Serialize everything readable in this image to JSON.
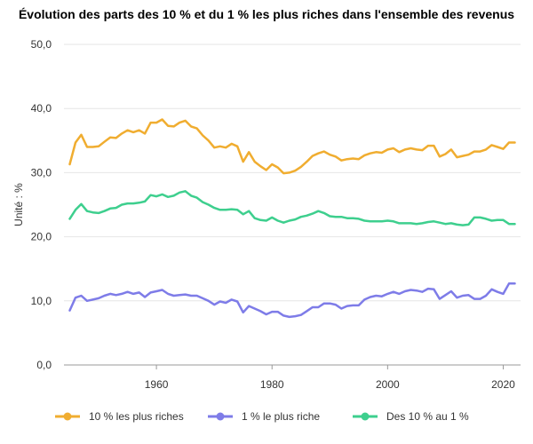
{
  "chart_data": {
    "type": "line",
    "title": "Évolution des parts des 10 % et du 1 % les plus riches dans l'ensemble des revenus",
    "ylabel": "Unité : %",
    "xlabel": "",
    "xlim": [
      1944,
      2023
    ],
    "ylim": [
      0,
      50
    ],
    "x_ticks": [
      1960,
      1980,
      2000,
      2020
    ],
    "y_ticks": [
      0,
      10,
      20,
      30,
      40,
      50
    ],
    "y_tick_labels": [
      "0,0",
      "10,0",
      "20,0",
      "30,0",
      "40,0",
      "50,0"
    ],
    "legend_position": "bottom",
    "grid": "horizontal",
    "x": [
      1945,
      1946,
      1947,
      1948,
      1949,
      1950,
      1951,
      1952,
      1953,
      1954,
      1955,
      1956,
      1957,
      1958,
      1959,
      1960,
      1961,
      1962,
      1963,
      1964,
      1965,
      1966,
      1967,
      1968,
      1969,
      1970,
      1971,
      1972,
      1973,
      1974,
      1975,
      1976,
      1977,
      1978,
      1979,
      1980,
      1981,
      1982,
      1983,
      1984,
      1985,
      1986,
      1987,
      1988,
      1989,
      1990,
      1991,
      1992,
      1993,
      1994,
      1995,
      1996,
      1997,
      1998,
      1999,
      2000,
      2001,
      2002,
      2003,
      2004,
      2005,
      2006,
      2007,
      2008,
      2009,
      2010,
      2011,
      2012,
      2013,
      2014,
      2015,
      2016,
      2017,
      2018,
      2019,
      2020,
      2021,
      2022
    ],
    "series": [
      {
        "name": "10 % les plus riches",
        "color": "#f0ad30",
        "values": [
          31.3,
          34.7,
          35.9,
          34.0,
          34.0,
          34.1,
          34.8,
          35.5,
          35.4,
          36.1,
          36.6,
          36.3,
          36.6,
          36.1,
          37.8,
          37.8,
          38.3,
          37.3,
          37.2,
          37.8,
          38.1,
          37.2,
          36.9,
          35.8,
          35.0,
          33.9,
          34.1,
          33.9,
          34.5,
          34.1,
          31.7,
          33.2,
          31.7,
          31.0,
          30.4,
          31.3,
          30.8,
          29.9,
          30.0,
          30.3,
          30.9,
          31.7,
          32.6,
          33.0,
          33.3,
          32.8,
          32.5,
          31.9,
          32.1,
          32.2,
          32.1,
          32.7,
          33.0,
          33.2,
          33.1,
          33.6,
          33.8,
          33.2,
          33.6,
          33.8,
          33.6,
          33.5,
          34.2,
          34.2,
          32.5,
          32.9,
          33.6,
          32.4,
          32.6,
          32.8,
          33.3,
          33.3,
          33.6,
          34.3,
          34.0,
          33.7,
          34.7,
          34.7
        ]
      },
      {
        "name": "1 % le plus riche",
        "color": "#7e7ce8",
        "values": [
          8.5,
          10.5,
          10.8,
          10.0,
          10.2,
          10.4,
          10.8,
          11.1,
          10.9,
          11.1,
          11.4,
          11.1,
          11.3,
          10.6,
          11.3,
          11.5,
          11.7,
          11.1,
          10.8,
          10.9,
          11.0,
          10.8,
          10.8,
          10.4,
          10.0,
          9.4,
          9.9,
          9.7,
          10.2,
          9.9,
          8.2,
          9.2,
          8.8,
          8.4,
          7.9,
          8.3,
          8.3,
          7.7,
          7.5,
          7.6,
          7.8,
          8.4,
          9.0,
          9.0,
          9.6,
          9.6,
          9.4,
          8.8,
          9.2,
          9.3,
          9.3,
          10.2,
          10.6,
          10.8,
          10.7,
          11.1,
          11.4,
          11.1,
          11.5,
          11.7,
          11.6,
          11.4,
          11.9,
          11.8,
          10.3,
          10.9,
          11.5,
          10.5,
          10.8,
          10.9,
          10.3,
          10.3,
          10.8,
          11.8,
          11.4,
          11.1,
          12.7,
          12.7
        ]
      },
      {
        "name": "Des 10 % au 1 %",
        "color": "#3ecf8e",
        "values": [
          22.8,
          24.2,
          25.1,
          24.0,
          23.8,
          23.7,
          24.0,
          24.4,
          24.5,
          25.0,
          25.2,
          25.2,
          25.3,
          25.5,
          26.5,
          26.3,
          26.6,
          26.2,
          26.4,
          26.9,
          27.1,
          26.4,
          26.1,
          25.4,
          25.0,
          24.5,
          24.2,
          24.2,
          24.3,
          24.2,
          23.5,
          24.0,
          22.9,
          22.6,
          22.5,
          23.0,
          22.5,
          22.2,
          22.5,
          22.7,
          23.1,
          23.3,
          23.6,
          24.0,
          23.7,
          23.2,
          23.1,
          23.1,
          22.9,
          22.9,
          22.8,
          22.5,
          22.4,
          22.4,
          22.4,
          22.5,
          22.4,
          22.1,
          22.1,
          22.1,
          22.0,
          22.1,
          22.3,
          22.4,
          22.2,
          22.0,
          22.1,
          21.9,
          21.8,
          21.9,
          23.0,
          23.0,
          22.8,
          22.5,
          22.6,
          22.6,
          22.0,
          22.0
        ]
      }
    ]
  }
}
